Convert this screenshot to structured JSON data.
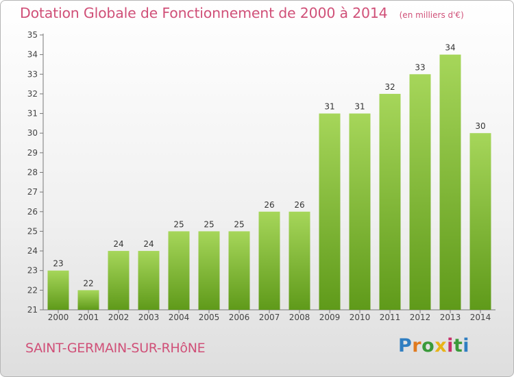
{
  "chart_data": {
    "type": "bar",
    "title": "Dotation Globale de Fonctionnement de 2000 à 2014",
    "subtitle": "(en milliers d'€)",
    "categories": [
      "2000",
      "2001",
      "2002",
      "2003",
      "2004",
      "2005",
      "2006",
      "2007",
      "2008",
      "2009",
      "2010",
      "2011",
      "2012",
      "2013",
      "2014"
    ],
    "values": [
      23,
      22,
      24,
      24,
      25,
      25,
      25,
      26,
      26,
      31,
      31,
      32,
      33,
      34,
      30
    ],
    "ylim": [
      21,
      35
    ],
    "yticks": [
      21,
      22,
      23,
      24,
      25,
      26,
      27,
      28,
      29,
      30,
      31,
      32,
      33,
      34,
      35
    ],
    "grid": false,
    "bar_color_top": "#a6d65a",
    "bar_color_bottom": "#5f9a1a"
  },
  "commune": "SAINT-GERMAIN-SUR-RHôNE",
  "logo": {
    "letters": [
      "P",
      "r",
      "o",
      "x",
      "i",
      "t",
      "i"
    ],
    "colors": [
      "#2f7ec1",
      "#e07a1f",
      "#3a9a3a",
      "#e8b418",
      "#c8306a",
      "#3a9a3a",
      "#2f7ec1"
    ]
  }
}
